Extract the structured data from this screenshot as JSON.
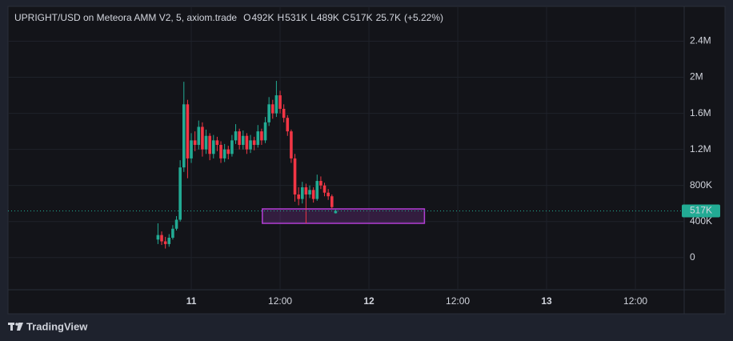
{
  "chart_data": {
    "type": "candlestick",
    "title": "UPRIGHT/USD on Meteora AMM V2, 5, axiom.trade",
    "ohlc": [
      {
        "key": "O",
        "value": 492000,
        "label": "492K"
      },
      {
        "key": "H",
        "value": 531000,
        "label": "531K"
      },
      {
        "key": "L",
        "value": 489000,
        "label": "489K"
      },
      {
        "key": "C",
        "value": 517000,
        "label": "517K"
      }
    ],
    "change": {
      "value": 25700,
      "label": "25.7K"
    },
    "change_percent": {
      "value": 5.22,
      "label": "(+5.22%)"
    },
    "last_price": {
      "value": 517000,
      "label": "517K"
    },
    "up_color": "#22ab94",
    "down_color": "#f23645",
    "x": [
      -4.5,
      -4,
      -3.5,
      -3,
      -2.5,
      -2,
      -1.5,
      -1,
      -0.5,
      0,
      0.5,
      1,
      1.5,
      2,
      2.5,
      3,
      3.5,
      4,
      4.5,
      5,
      5.5,
      6,
      6.5,
      7,
      7.5,
      8,
      8.5,
      9,
      9.5,
      10,
      10.5,
      11,
      11.5,
      12,
      12.5,
      13,
      13.5,
      14,
      14.5,
      15,
      15.5,
      16,
      16.5,
      17,
      17.5,
      18,
      18.5,
      19,
      19.5
    ],
    "open": [
      200000,
      250000,
      180000,
      150000,
      220000,
      320000,
      420000,
      1000000,
      1700000,
      1100000,
      1300000,
      1250000,
      1450000,
      1200000,
      1350000,
      1150000,
      1300000,
      1250000,
      1100000,
      1200000,
      1150000,
      1300000,
      1400000,
      1250000,
      1350000,
      1200000,
      1300000,
      1250000,
      1400000,
      1300000,
      1500000,
      1700000,
      1600000,
      1800000,
      1650000,
      1550000,
      1400000,
      1100000,
      700000,
      650000,
      780000,
      700000,
      750000,
      650000,
      850000,
      800000,
      720000,
      680000,
      492000
    ],
    "high": [
      380000,
      290000,
      230000,
      260000,
      360000,
      460000,
      1080000,
      1950000,
      1750000,
      1380000,
      1400000,
      1520000,
      1500000,
      1420000,
      1380000,
      1360000,
      1340000,
      1290000,
      1260000,
      1240000,
      1360000,
      1480000,
      1430000,
      1410000,
      1380000,
      1360000,
      1340000,
      1470000,
      1430000,
      1560000,
      1780000,
      1750000,
      1960000,
      1850000,
      1700000,
      1580000,
      1420000,
      1150000,
      780000,
      840000,
      820000,
      800000,
      780000,
      920000,
      900000,
      830000,
      760000,
      700000,
      531000
    ],
    "low": [
      150000,
      140000,
      100000,
      120000,
      200000,
      300000,
      400000,
      950000,
      880000,
      1050000,
      1180000,
      1200000,
      1120000,
      1150000,
      1080000,
      1100000,
      1180000,
      1050000,
      1060000,
      1090000,
      1120000,
      1260000,
      1200000,
      1200000,
      1150000,
      1160000,
      1190000,
      1220000,
      1250000,
      1270000,
      1460000,
      1540000,
      1560000,
      1600000,
      1500000,
      1350000,
      1050000,
      620000,
      580000,
      600000,
      380000,
      660000,
      610000,
      630000,
      760000,
      680000,
      640000,
      540000,
      489000
    ],
    "close": [
      250000,
      180000,
      150000,
      220000,
      320000,
      420000,
      1000000,
      1700000,
      1100000,
      1300000,
      1250000,
      1450000,
      1200000,
      1350000,
      1150000,
      1300000,
      1250000,
      1100000,
      1200000,
      1150000,
      1300000,
      1400000,
      1250000,
      1350000,
      1200000,
      1300000,
      1250000,
      1400000,
      1300000,
      1500000,
      1700000,
      1600000,
      1800000,
      1650000,
      1550000,
      1400000,
      1100000,
      700000,
      650000,
      780000,
      700000,
      750000,
      650000,
      850000,
      800000,
      720000,
      680000,
      560000,
      517000
    ],
    "rectangle": {
      "x": [
        9.6,
        31.5
      ],
      "y": [
        380000,
        540000
      ],
      "color": "#b33fd6"
    },
    "xlim": [
      -24.76,
      66.59
    ],
    "xticks": [
      {
        "value": 0,
        "label": "11"
      },
      {
        "value": 12,
        "label": "12:00"
      },
      {
        "value": 24,
        "label": "12"
      },
      {
        "value": 36,
        "label": "12:00"
      },
      {
        "value": 48,
        "label": "13"
      },
      {
        "value": 60,
        "label": "12:00"
      }
    ],
    "ylim": [
      -357000,
      2786000
    ],
    "yticks": [
      0,
      {
        "value": 400000,
        "label": "400K"
      },
      {
        "value": 800000,
        "label": "800K"
      },
      {
        "value": 1200000,
        "label": "1.2M"
      },
      {
        "value": 1600000,
        "label": "1.6M"
      },
      {
        "value": 2000000,
        "label": "2M"
      },
      {
        "value": 2400000,
        "label": "2.4M"
      }
    ],
    "grid": true,
    "branding": "TradingView"
  }
}
